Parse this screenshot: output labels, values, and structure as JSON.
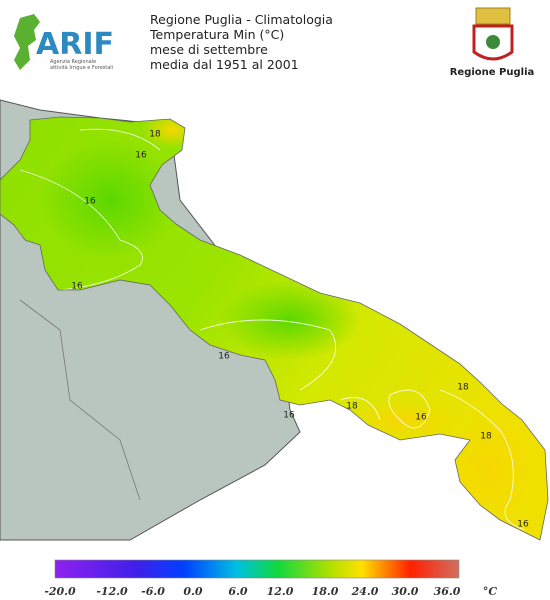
{
  "header": {
    "logo": "ARIF",
    "logo_subtitle": [
      "Agenzia Regionale",
      "attività Irrigue e Forestali"
    ],
    "title_lines": [
      "Regione Puglia - Climatologia",
      "Temperatura Min (°C)",
      "mese di settembre",
      "media dal 1951 al 2001"
    ],
    "region_label": "Regione Puglia"
  },
  "map": {
    "contour_labels": [
      "18",
      "16",
      "16",
      "16",
      "16",
      "16",
      "18",
      "18",
      "16",
      "18",
      "16"
    ]
  },
  "legend": {
    "ticks": [
      "-20.0",
      "-12.0",
      "-6.0",
      "0.0",
      "6.0",
      "12.0",
      "18.0",
      "24.0",
      "30.0",
      "36.0"
    ],
    "unit": "°C"
  }
}
